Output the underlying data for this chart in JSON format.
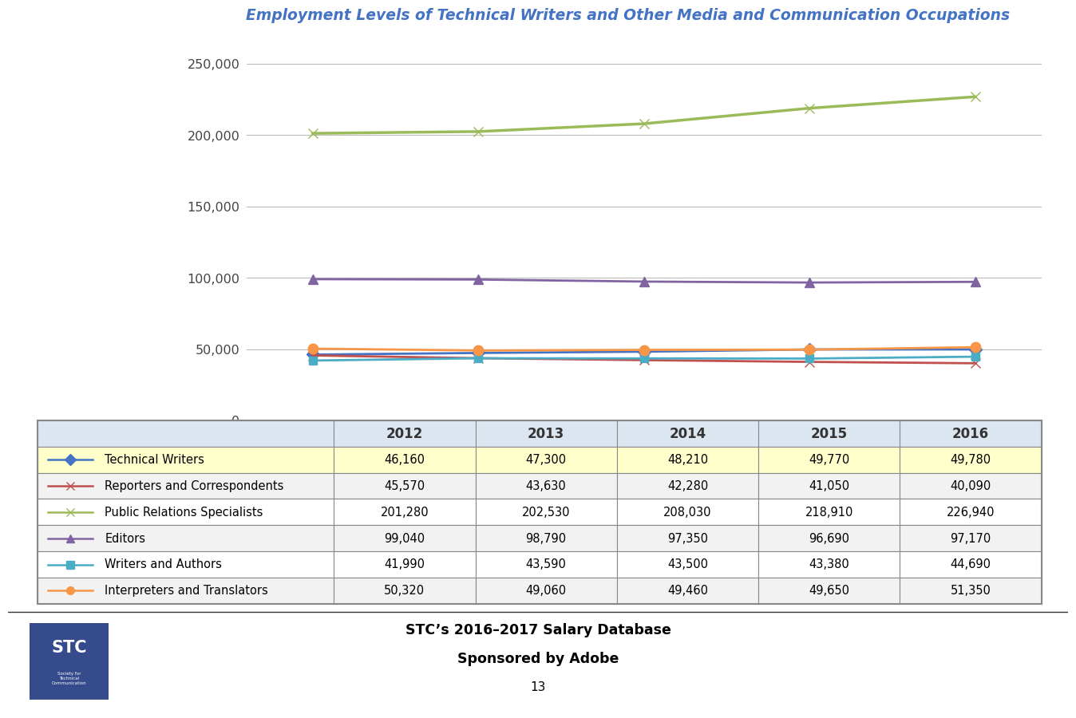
{
  "title": "Employment Levels of Technical Writers and Other Media and Communication Occupations",
  "years": [
    2012,
    2013,
    2014,
    2015,
    2016
  ],
  "series": [
    {
      "name": "Technical Writers",
      "values": [
        46160,
        47300,
        48210,
        49770,
        49780
      ],
      "color": "#4472C4",
      "marker": "D",
      "markersize": 8,
      "linewidth": 2.0,
      "highlight": true
    },
    {
      "name": "Reporters and Correspondents",
      "values": [
        45570,
        43630,
        42280,
        41050,
        40090
      ],
      "color": "#C0504D",
      "marker": "x",
      "markersize": 9,
      "linewidth": 2.0,
      "highlight": false
    },
    {
      "name": "Public Relations Specialists",
      "values": [
        201280,
        202530,
        208030,
        218910,
        226940
      ],
      "color": "#9BBB59",
      "marker": "x",
      "markersize": 9,
      "linewidth": 2.5,
      "highlight": false
    },
    {
      "name": "Editors",
      "values": [
        99040,
        98790,
        97350,
        96690,
        97170
      ],
      "color": "#8064A2",
      "marker": "^",
      "markersize": 8,
      "linewidth": 2.0,
      "highlight": false
    },
    {
      "name": "Writers and Authors",
      "values": [
        41990,
        43590,
        43500,
        43380,
        44690
      ],
      "color": "#4BACC6",
      "marker": "s",
      "markersize": 7,
      "linewidth": 2.0,
      "highlight": false
    },
    {
      "name": "Interpreters and Translators",
      "values": [
        50320,
        49060,
        49460,
        49650,
        51350
      ],
      "color": "#F79646",
      "marker": "o",
      "markersize": 9,
      "linewidth": 2.0,
      "highlight": false
    }
  ],
  "ylim": [
    0,
    275000
  ],
  "yticks": [
    0,
    50000,
    100000,
    150000,
    200000,
    250000
  ],
  "ytick_labels": [
    "0",
    "50,000",
    "100,000",
    "150,000",
    "200,000",
    "250,000"
  ],
  "background_color": "#FFFFFF",
  "chart_bg_color": "#FFFFFF",
  "grid_color": "#BBBBBB",
  "footer_text1": "STC’s 2016–2017 Salary Database",
  "footer_text2": "Sponsored by Adobe",
  "footer_text3": "13",
  "highlight_row_color": "#FFFFCC",
  "col_widths": [
    0.295,
    0.141,
    0.141,
    0.141,
    0.141,
    0.141
  ],
  "table_border_color": "#888888",
  "header_bg_color": "#DCE6F1",
  "alt_row_color": "#F2F2F2"
}
